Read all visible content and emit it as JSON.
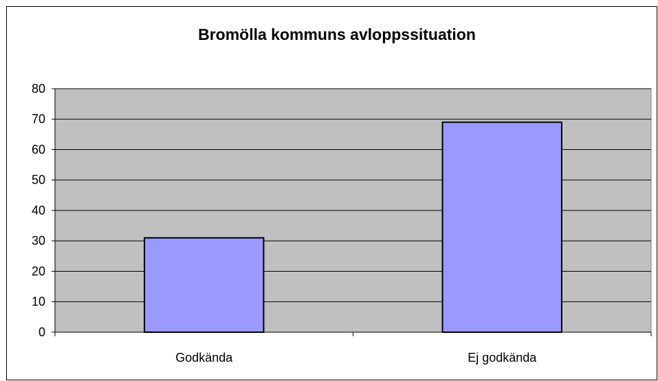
{
  "chart_data": {
    "type": "bar",
    "title": "Bromölla kommuns avloppssituation",
    "categories": [
      "Godkända",
      "Ej godkända"
    ],
    "values": [
      31,
      69
    ],
    "color": "#9999ff",
    "ylim": [
      0,
      80
    ],
    "yticks": [
      0,
      10,
      20,
      30,
      40,
      50,
      60,
      70,
      80
    ],
    "grid": true
  }
}
